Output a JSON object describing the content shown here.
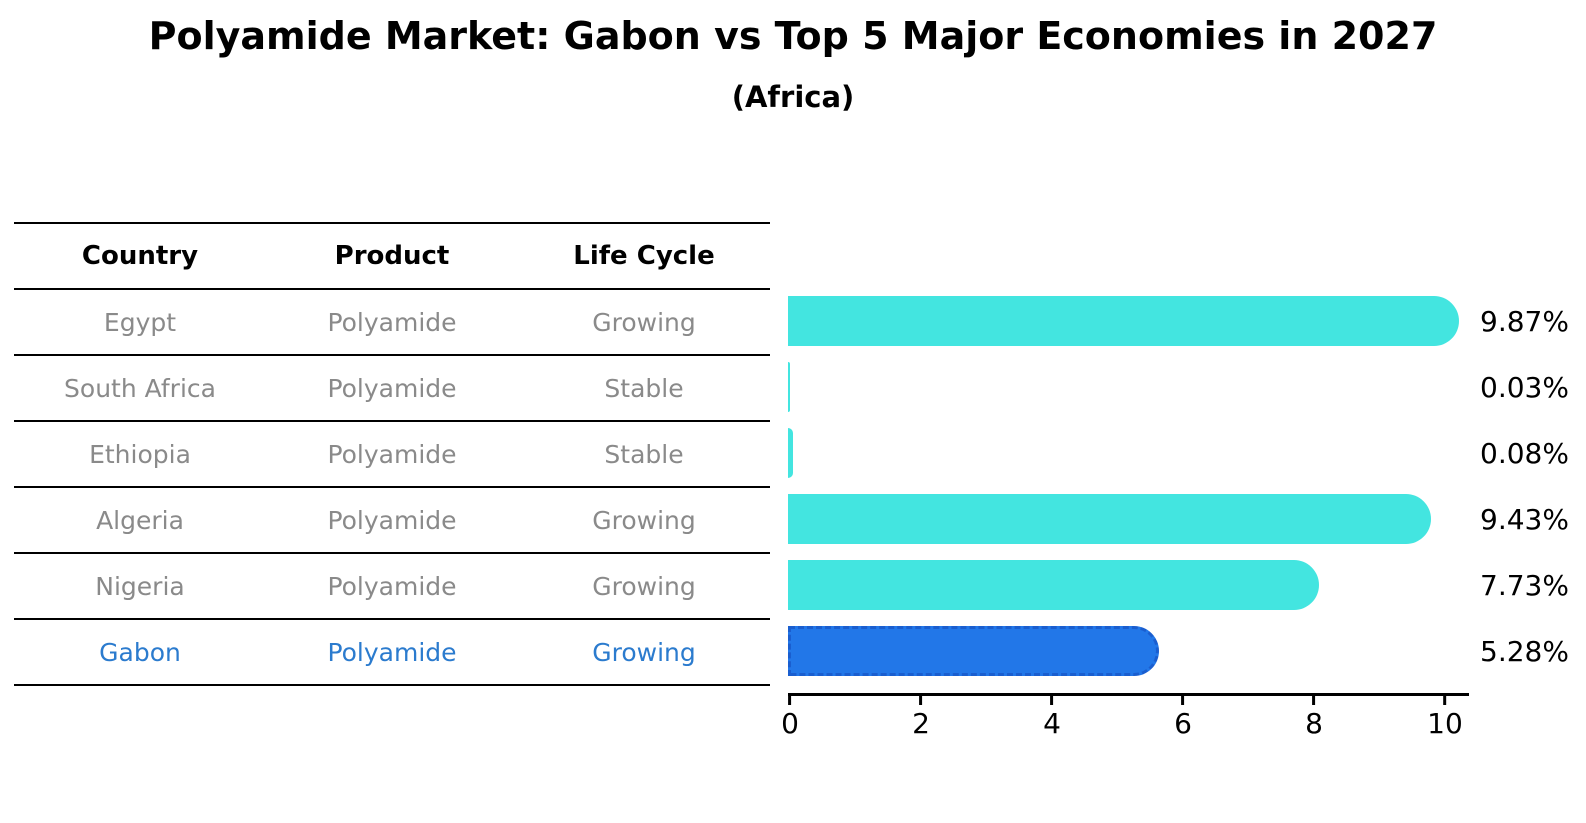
{
  "header": {
    "title": "Polyamide Market: Gabon vs Top 5 Major Economies in 2027",
    "subtitle": "(Africa)"
  },
  "table": {
    "headers": [
      "Country",
      "Product",
      "Life Cycle"
    ],
    "rows": [
      {
        "country": "Egypt",
        "product": "Polyamide",
        "life_cycle": "Growing",
        "highlighted": false
      },
      {
        "country": "South Africa",
        "product": "Polyamide",
        "life_cycle": "Stable",
        "highlighted": false
      },
      {
        "country": "Ethiopia",
        "product": "Polyamide",
        "life_cycle": "Stable",
        "highlighted": false
      },
      {
        "country": "Algeria",
        "product": "Polyamide",
        "life_cycle": "Growing",
        "highlighted": false
      },
      {
        "country": "Nigeria",
        "product": "Polyamide",
        "life_cycle": "Growing",
        "highlighted": false
      },
      {
        "country": "Gabon",
        "product": "Polyamide",
        "life_cycle": "Growing",
        "highlighted": true
      }
    ]
  },
  "chart_data": {
    "type": "bar",
    "orientation": "horizontal",
    "title": "Polyamide Market: Gabon vs Top 5 Major Economies in 2027",
    "subtitle": "(Africa)",
    "categories": [
      "Egypt",
      "South Africa",
      "Ethiopia",
      "Algeria",
      "Nigeria",
      "Gabon"
    ],
    "values": [
      9.87,
      0.03,
      0.08,
      9.43,
      7.73,
      5.28
    ],
    "value_labels": [
      "9.87%",
      "0.03%",
      "0.08%",
      "9.43%",
      "7.73%",
      "5.28%"
    ],
    "highlight_index": 5,
    "x_ticks": [
      "0",
      "2",
      "4",
      "6",
      "8",
      "10"
    ],
    "xlim": [
      0,
      10
    ],
    "grid": false,
    "legend": null
  },
  "colors": {
    "bar_default": "#43e5e0",
    "bar_highlight": "#2277e8",
    "bar_highlight_border": "#1a5ecf",
    "text_header": "#000000",
    "text_muted": "#8a8a8a",
    "text_highlight": "#2b7bce",
    "axis": "#000000"
  }
}
